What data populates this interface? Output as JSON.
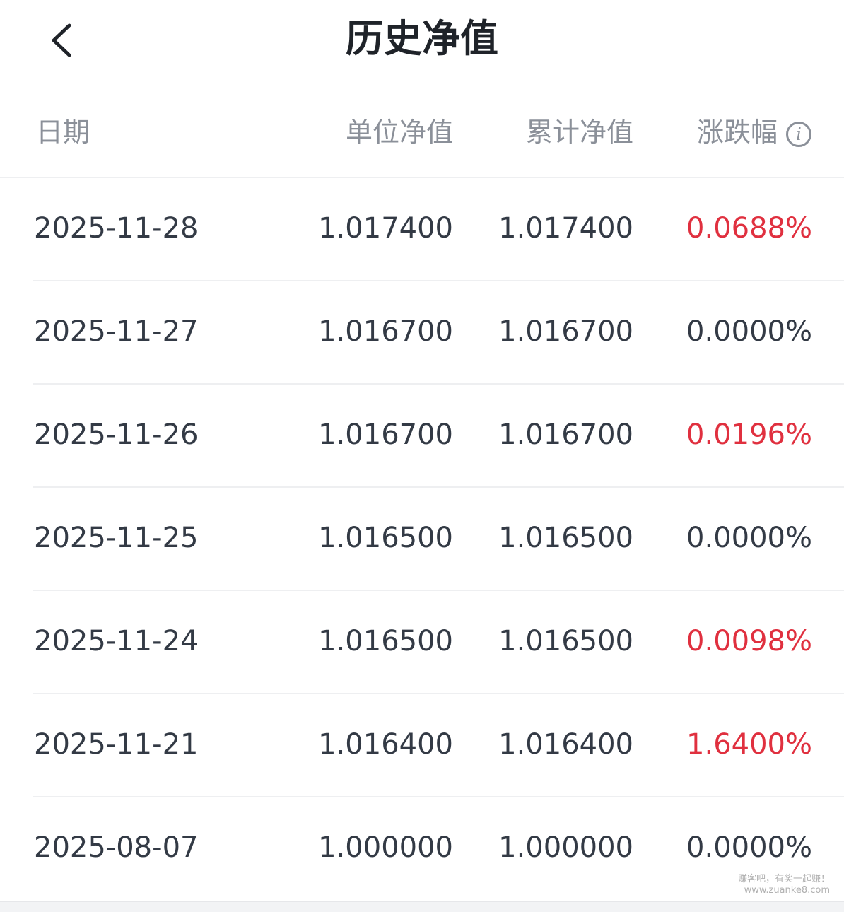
{
  "header": {
    "title": "历史净值"
  },
  "columns": {
    "date": "日期",
    "unit_nav": "单位净值",
    "acc_nav": "累计净值",
    "change": "涨跌幅"
  },
  "colors": {
    "up": "#e0303f",
    "neutral": "#333a45",
    "header_text": "#8b9099"
  },
  "rows": [
    {
      "date": "2025-11-28",
      "unit_nav": "1.017400",
      "acc_nav": "1.017400",
      "change": "0.0688%",
      "up": true
    },
    {
      "date": "2025-11-27",
      "unit_nav": "1.016700",
      "acc_nav": "1.016700",
      "change": "0.0000%",
      "up": false
    },
    {
      "date": "2025-11-26",
      "unit_nav": "1.016700",
      "acc_nav": "1.016700",
      "change": "0.0196%",
      "up": true
    },
    {
      "date": "2025-11-25",
      "unit_nav": "1.016500",
      "acc_nav": "1.016500",
      "change": "0.0000%",
      "up": false
    },
    {
      "date": "2025-11-24",
      "unit_nav": "1.016500",
      "acc_nav": "1.016500",
      "change": "0.0098%",
      "up": true
    },
    {
      "date": "2025-11-21",
      "unit_nav": "1.016400",
      "acc_nav": "1.016400",
      "change": "1.6400%",
      "up": true
    },
    {
      "date": "2025-08-07",
      "unit_nav": "1.000000",
      "acc_nav": "1.000000",
      "change": "0.0000%",
      "up": false
    }
  ],
  "watermark": {
    "line1": "赚客吧，有奖一起赚！",
    "line2": "www.zuanke8.com"
  }
}
